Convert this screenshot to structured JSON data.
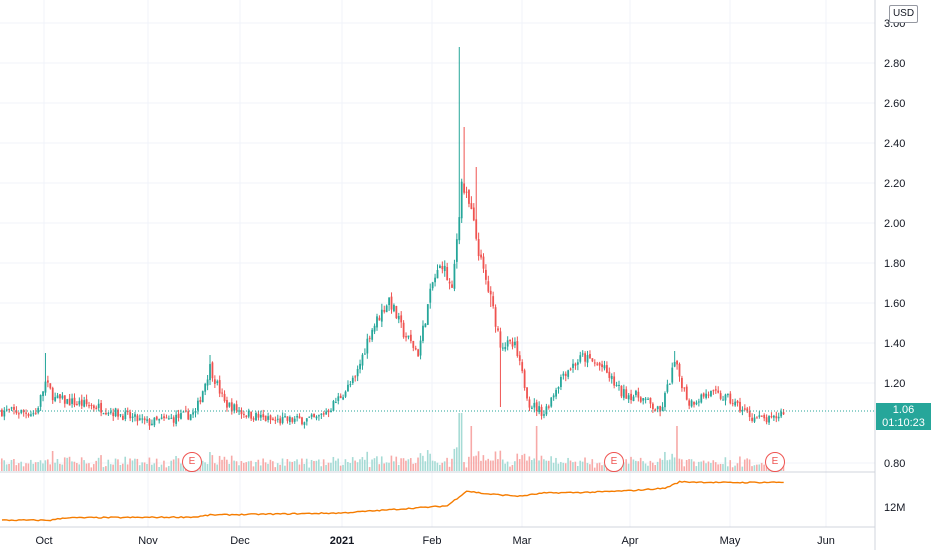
{
  "chart_data": {
    "type": "candlestick",
    "currency": "USD",
    "y_ticks": [
      "3.00",
      "2.80",
      "2.60",
      "2.40",
      "2.20",
      "2.00",
      "1.80",
      "1.60",
      "1.40",
      "1.20",
      "0.80"
    ],
    "x_ticks": [
      {
        "label": "Oct",
        "bold": false
      },
      {
        "label": "Nov",
        "bold": false
      },
      {
        "label": "Dec",
        "bold": false
      },
      {
        "label": "2021",
        "bold": true
      },
      {
        "label": "Feb",
        "bold": false
      },
      {
        "label": "Mar",
        "bold": false
      },
      {
        "label": "Apr",
        "bold": false
      },
      {
        "label": "May",
        "bold": false
      },
      {
        "label": "Jun",
        "bold": false
      }
    ],
    "last_price": "1.06",
    "countdown": "01:10:23",
    "indicator_tick": "12M",
    "earnings_markers": [
      "E",
      "E",
      "E"
    ],
    "colors": {
      "up": "#26a69a",
      "down": "#ef5350",
      "indicator": "#f57c00",
      "grid": "#f0f3fa"
    },
    "price_keypoints": [
      {
        "i": 0,
        "p": 1.06
      },
      {
        "i": 14,
        "p": 1.05
      },
      {
        "i": 18,
        "p": 1.2
      },
      {
        "i": 22,
        "p": 1.12
      },
      {
        "i": 40,
        "p": 1.08
      },
      {
        "i": 60,
        "p": 1.0
      },
      {
        "i": 70,
        "p": 1.02
      },
      {
        "i": 80,
        "p": 1.05
      },
      {
        "i": 86,
        "p": 1.28
      },
      {
        "i": 92,
        "p": 1.1
      },
      {
        "i": 100,
        "p": 1.05
      },
      {
        "i": 112,
        "p": 1.01
      },
      {
        "i": 130,
        "p": 1.02
      },
      {
        "i": 136,
        "p": 1.08
      },
      {
        "i": 146,
        "p": 1.22
      },
      {
        "i": 152,
        "p": 1.45
      },
      {
        "i": 160,
        "p": 1.62
      },
      {
        "i": 166,
        "p": 1.45
      },
      {
        "i": 172,
        "p": 1.35
      },
      {
        "i": 178,
        "p": 1.7
      },
      {
        "i": 182,
        "p": 1.8
      },
      {
        "i": 186,
        "p": 1.65
      },
      {
        "i": 190,
        "p": 2.2
      },
      {
        "i": 194,
        "p": 2.05
      },
      {
        "i": 198,
        "p": 1.8
      },
      {
        "i": 202,
        "p": 1.62
      },
      {
        "i": 206,
        "p": 1.4
      },
      {
        "i": 212,
        "p": 1.38
      },
      {
        "i": 218,
        "p": 1.1
      },
      {
        "i": 224,
        "p": 1.05
      },
      {
        "i": 232,
        "p": 1.25
      },
      {
        "i": 240,
        "p": 1.33
      },
      {
        "i": 248,
        "p": 1.28
      },
      {
        "i": 256,
        "p": 1.15
      },
      {
        "i": 264,
        "p": 1.13
      },
      {
        "i": 272,
        "p": 1.05
      },
      {
        "i": 278,
        "p": 1.3
      },
      {
        "i": 284,
        "p": 1.1
      },
      {
        "i": 292,
        "p": 1.15
      },
      {
        "i": 300,
        "p": 1.12
      },
      {
        "i": 310,
        "p": 1.03
      },
      {
        "i": 318,
        "p": 1.01
      },
      {
        "i": 323,
        "p": 1.06
      }
    ],
    "indicator_keypoints": [
      {
        "i": 0,
        "v": 0.02
      },
      {
        "i": 20,
        "v": 0.02
      },
      {
        "i": 26,
        "v": 0.08
      },
      {
        "i": 60,
        "v": 0.09
      },
      {
        "i": 80,
        "v": 0.1
      },
      {
        "i": 86,
        "v": 0.15
      },
      {
        "i": 140,
        "v": 0.2
      },
      {
        "i": 160,
        "v": 0.28
      },
      {
        "i": 184,
        "v": 0.38
      },
      {
        "i": 192,
        "v": 0.75
      },
      {
        "i": 200,
        "v": 0.68
      },
      {
        "i": 214,
        "v": 0.62
      },
      {
        "i": 224,
        "v": 0.7
      },
      {
        "i": 244,
        "v": 0.72
      },
      {
        "i": 260,
        "v": 0.76
      },
      {
        "i": 274,
        "v": 0.82
      },
      {
        "i": 280,
        "v": 0.98
      },
      {
        "i": 300,
        "v": 0.96
      },
      {
        "i": 323,
        "v": 0.97
      }
    ]
  }
}
